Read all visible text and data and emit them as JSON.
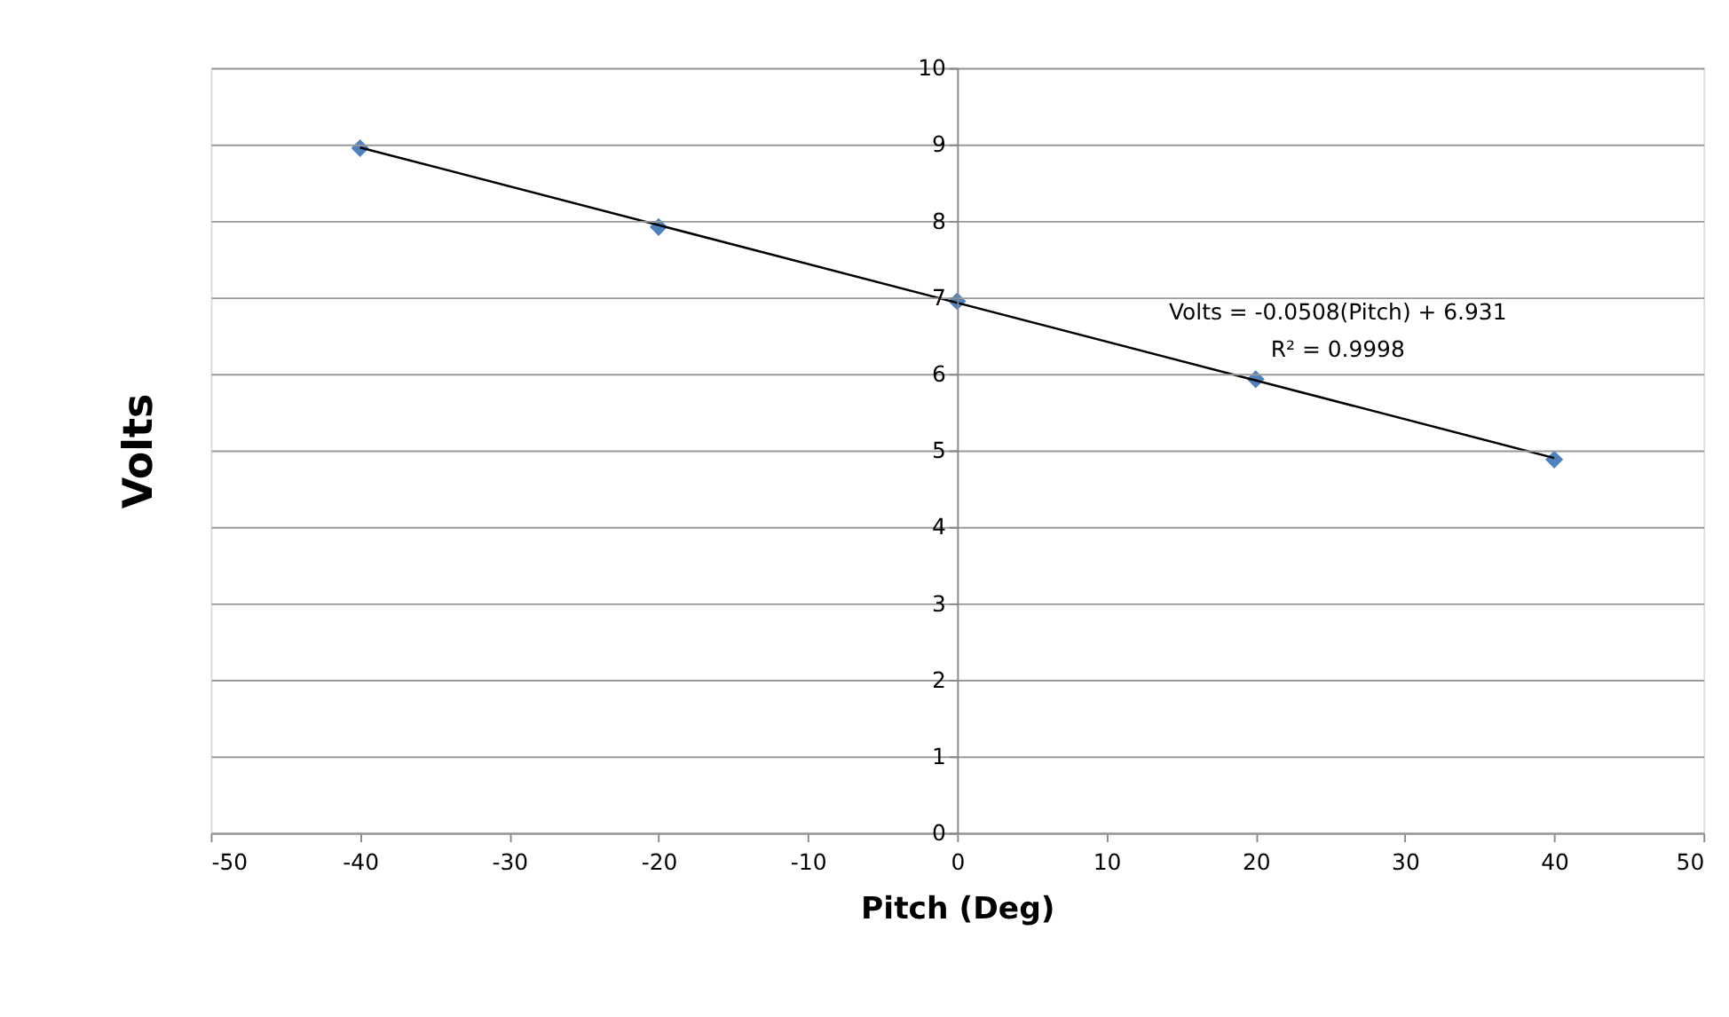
{
  "chart_data": {
    "type": "scatter",
    "xlabel": "Pitch (Deg)",
    "ylabel": "Volts",
    "x": [
      -40,
      -20,
      0,
      20,
      40
    ],
    "series": [
      {
        "color": "#4f81bd",
        "marker": "diamond",
        "values": [
          8.95,
          7.92,
          6.95,
          5.93,
          4.88
        ]
      },
      {
        "type": "line",
        "color": "#000000",
        "marker": "none",
        "x": [
          -40,
          40
        ],
        "values": [
          8.96,
          4.9
        ]
      }
    ],
    "annotations": [
      "Volts = -0.0508(Pitch) + 6.931",
      "R² = 0.9998"
    ],
    "xlim": [
      -50,
      50
    ],
    "xticks": [
      -50,
      -40,
      -30,
      -20,
      -10,
      0,
      10,
      20,
      30,
      40,
      50
    ],
    "ylim": [
      0,
      10
    ],
    "yticks": [
      0,
      1,
      2,
      3,
      4,
      5,
      6,
      7,
      8,
      9,
      10
    ],
    "grid": "y"
  }
}
